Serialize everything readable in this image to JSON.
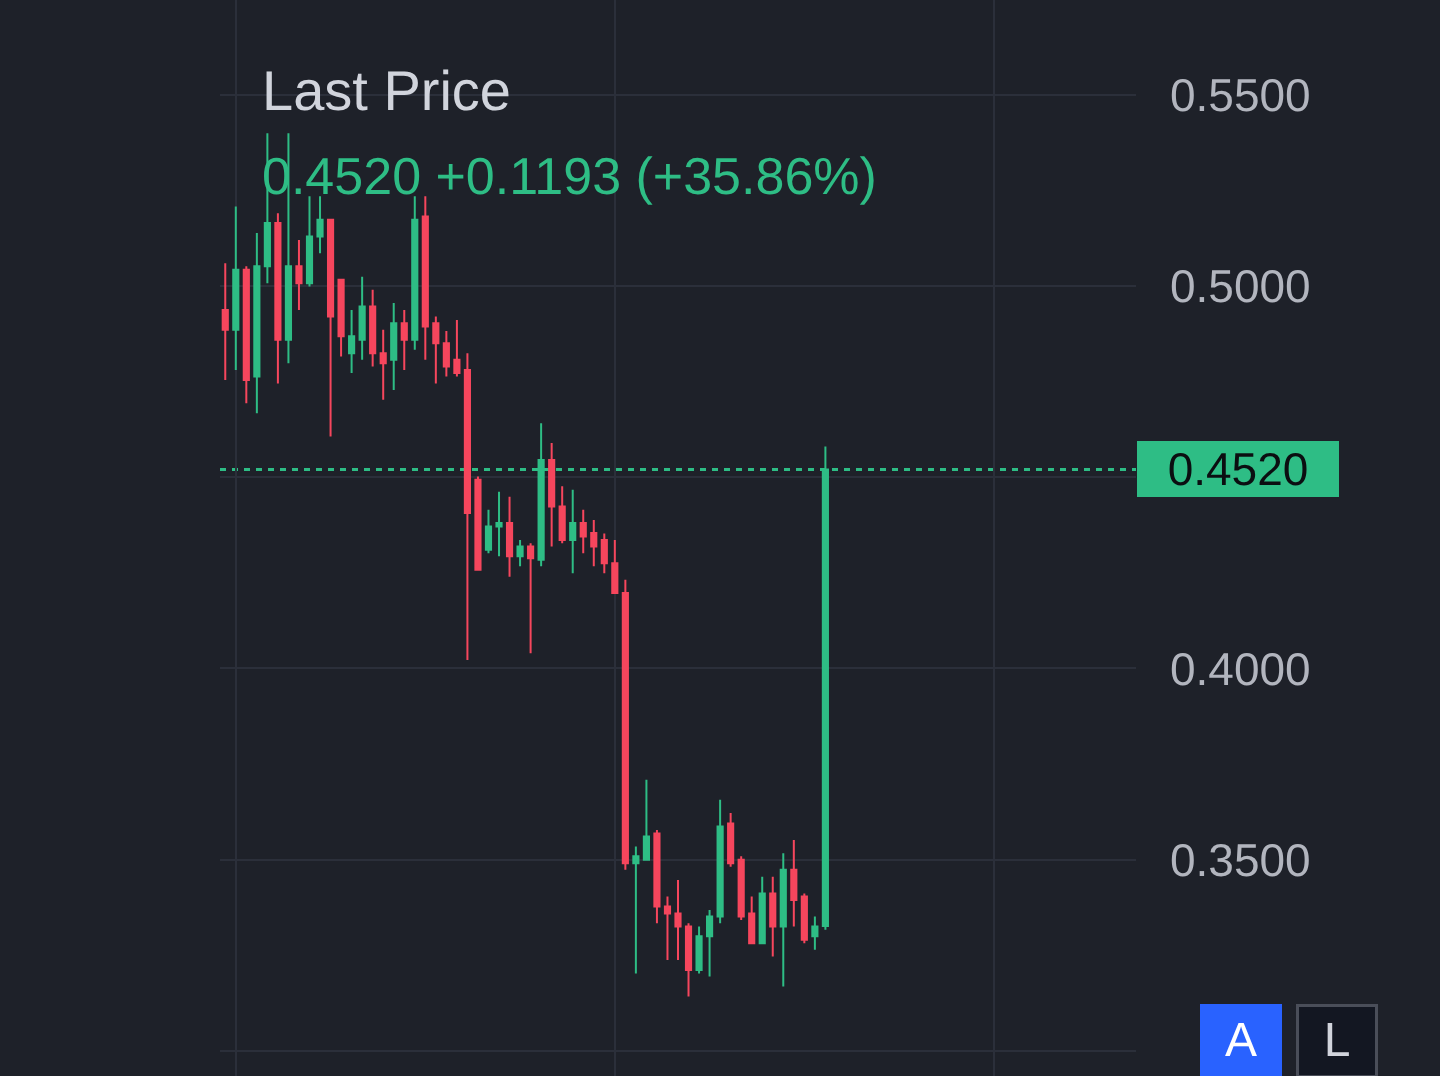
{
  "chart_data": {
    "type": "candlestick",
    "title": "Last Price",
    "subtitle": "0.4520 +0.1193 (+35.86%)",
    "categories": [
      null,
      null,
      null,
      null,
      null,
      null,
      null,
      null,
      null,
      null,
      null,
      null,
      null,
      null,
      null,
      null,
      null,
      null,
      null,
      null,
      null,
      null,
      null,
      null,
      null,
      null,
      null,
      null,
      null,
      null,
      null,
      null,
      null,
      null,
      null,
      null,
      null,
      null,
      null,
      null,
      null,
      null,
      null,
      null,
      null,
      null,
      null,
      null,
      null,
      null,
      null,
      null,
      null,
      null,
      null,
      null,
      null,
      null,
      null,
      null,
      null,
      null,
      null,
      null,
      null,
      null,
      null,
      null,
      null,
      null,
      null,
      null,
      null,
      null,
      null,
      null,
      null,
      null,
      null,
      null,
      null,
      null,
      null,
      null,
      null,
      null,
      null
    ],
    "ohlc": [
      [
        0.4937,
        0.5059,
        0.4754,
        0.4885
      ],
      [
        0.4885,
        0.5207,
        0.478,
        0.5042
      ],
      [
        0.5042,
        0.5051,
        0.4693,
        0.4754
      ],
      [
        0.4763,
        0.5138,
        0.4667,
        0.5051
      ],
      [
        0.5051,
        0.5399,
        0.5007,
        0.5164
      ],
      [
        0.5164,
        0.519,
        0.4745,
        0.4859
      ],
      [
        0.4859,
        0.5399,
        0.4798,
        0.5051
      ],
      [
        0.5051,
        0.512,
        0.4937,
        0.5007
      ],
      [
        0.5007,
        0.5234,
        0.4998,
        0.5129
      ],
      [
        0.5129,
        0.5234,
        0.5085,
        0.5173
      ],
      [
        0.5173,
        0.5173,
        0.4606,
        0.492
      ],
      [
        0.5016,
        0.5016,
        0.4815,
        0.4868
      ],
      [
        0.4824,
        0.4937,
        0.4772,
        0.4868
      ],
      [
        0.4859,
        0.5024,
        0.4807,
        0.4946
      ],
      [
        0.4946,
        0.499,
        0.4789,
        0.4824
      ],
      [
        0.4824,
        0.4885,
        0.4702,
        0.4798
      ],
      [
        0.4807,
        0.4955,
        0.4728,
        0.4902
      ],
      [
        0.4902,
        0.4937,
        0.478,
        0.4859
      ],
      [
        0.4859,
        0.5234,
        0.4833,
        0.5173
      ],
      [
        0.5181,
        0.5234,
        0.4807,
        0.4894
      ],
      [
        0.4902,
        0.492,
        0.4745,
        0.485
      ],
      [
        0.485,
        0.4882,
        0.4763,
        0.4789
      ],
      [
        0.4807,
        0.4911,
        0.4763,
        0.4772
      ],
      [
        0.478,
        0.4824,
        0.4022,
        0.4406
      ],
      [
        0.4493,
        0.4502,
        0.4258,
        0.4258
      ],
      [
        0.431,
        0.4415,
        0.4301,
        0.4371
      ],
      [
        0.4371,
        0.4462,
        0.4293,
        0.438
      ],
      [
        0.438,
        0.4449,
        0.424,
        0.4293
      ],
      [
        0.4293,
        0.4336,
        0.4267,
        0.4319
      ],
      [
        0.4319,
        0.4327,
        0.404,
        0.4288
      ],
      [
        0.4284,
        0.4641,
        0.4267,
        0.4545
      ],
      [
        0.4545,
        0.4589,
        0.4319,
        0.4423
      ],
      [
        0.4423,
        0.4476,
        0.4327,
        0.4336
      ],
      [
        0.4336,
        0.4467,
        0.4249,
        0.438
      ],
      [
        0.438,
        0.4415,
        0.4301,
        0.4345
      ],
      [
        0.4354,
        0.4388,
        0.4267,
        0.4319
      ],
      [
        0.4336,
        0.4353,
        0.4249,
        0.4275
      ],
      [
        0.4275,
        0.4336,
        0.4197,
        0.4197
      ],
      [
        0.4197,
        0.4232,
        0.3474,
        0.3491
      ],
      [
        0.3491,
        0.3535,
        0.3203,
        0.3509
      ],
      [
        0.35,
        0.3709,
        0.35,
        0.3561
      ],
      [
        0.3569,
        0.3578,
        0.3334,
        0.3378
      ],
      [
        0.3378,
        0.3404,
        0.3238,
        0.336
      ],
      [
        0.336,
        0.3447,
        0.3238,
        0.3326
      ],
      [
        0.3326,
        0.3334,
        0.3143,
        0.3212
      ],
      [
        0.3212,
        0.3326,
        0.3203,
        0.33
      ],
      [
        0.33,
        0.3369,
        0.3195,
        0.3352
      ],
      [
        0.3352,
        0.3657,
        0.3334,
        0.3587
      ],
      [
        0.3595,
        0.3622,
        0.3482,
        0.3491
      ],
      [
        0.35,
        0.3509,
        0.3343,
        0.3352
      ],
      [
        0.336,
        0.3404,
        0.3282,
        0.3282
      ],
      [
        0.3282,
        0.3456,
        0.3282,
        0.3412
      ],
      [
        0.3412,
        0.3456,
        0.3247,
        0.3326
      ],
      [
        0.3326,
        0.3517,
        0.3169,
        0.3474
      ],
      [
        0.3474,
        0.3552,
        0.3326,
        0.3395
      ],
      [
        0.3404,
        0.3412,
        0.3282,
        0.3291
      ],
      [
        0.33,
        0.3352,
        0.3265,
        0.3326
      ],
      [
        0.3327,
        0.458,
        0.3317,
        0.452
      ],
      null,
      null,
      null,
      null,
      null,
      null,
      null,
      null,
      null,
      null,
      null,
      null,
      null,
      null,
      null,
      null,
      null,
      null,
      null,
      null,
      null,
      null,
      null,
      null,
      null,
      null,
      null,
      null,
      null
    ],
    "colors": [
      "#f6465d",
      "#2ebd85",
      "#f6465d",
      "#2ebd85",
      "#2ebd85",
      "#f6465d",
      "#2ebd85",
      "#f6465d",
      "#2ebd85",
      "#2ebd85",
      "#f6465d",
      "#f6465d",
      "#2ebd85",
      "#2ebd85",
      "#f6465d",
      "#f6465d",
      "#2ebd85",
      "#f6465d",
      "#2ebd85",
      "#f6465d",
      "#f6465d",
      "#f6465d",
      "#f6465d",
      "#f6465d",
      "#f6465d",
      "#2ebd85",
      "#2ebd85",
      "#f6465d",
      "#2ebd85",
      "#f6465d",
      "#2ebd85",
      "#f6465d",
      "#f6465d",
      "#2ebd85",
      "#f6465d",
      "#f6465d",
      "#f6465d",
      "#f6465d",
      "#f6465d",
      "#2ebd85",
      "#2ebd85",
      "#f6465d",
      "#f6465d",
      "#f6465d",
      "#f6465d",
      "#2ebd85",
      "#2ebd85",
      "#2ebd85",
      "#f6465d",
      "#f6465d",
      "#f6465d",
      "#2ebd85",
      "#f6465d",
      "#2ebd85",
      "#f6465d",
      "#f6465d",
      "#2ebd85",
      "#2ebd85",
      null,
      null,
      null,
      null,
      null,
      null,
      null,
      null,
      null,
      null,
      null,
      null,
      null,
      null,
      null,
      null,
      null,
      null,
      null,
      null,
      null,
      null,
      null,
      null,
      null,
      null,
      null,
      null,
      null
    ],
    "ylim": [
      0.2935,
      0.5747
    ],
    "yticks": [
      {
        "value": 0.3,
        "label": null
      },
      {
        "value": 0.35,
        "label": "0.3500"
      },
      {
        "value": 0.4,
        "label": "0.4000"
      },
      {
        "value": 0.45,
        "label": null
      },
      {
        "value": 0.5,
        "label": "0.5000"
      },
      {
        "value": 0.55,
        "label": "0.5500"
      }
    ],
    "grid": true,
    "ref_lines": [
      {
        "axis": "y",
        "value": 0.452,
        "label": "0.4520",
        "color": "#2ebd85",
        "line_style": "dotted"
      }
    ],
    "annotations": [
      "A",
      "L"
    ]
  }
}
